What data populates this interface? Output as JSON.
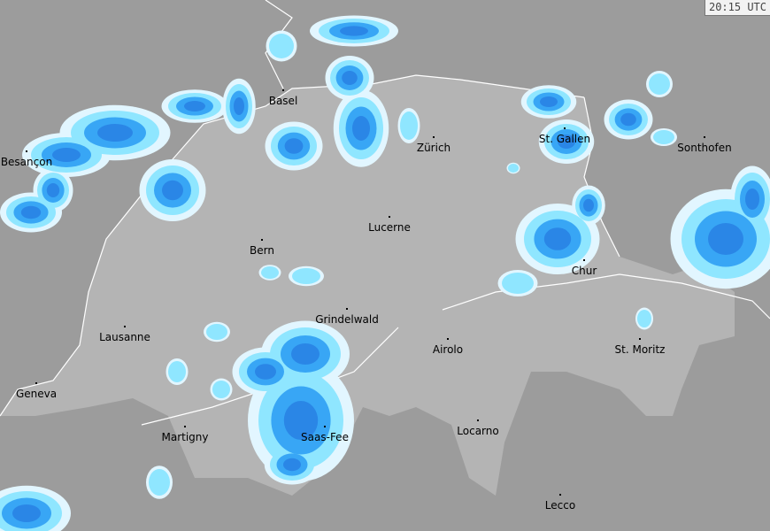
{
  "timestamp": "20:15 UTC",
  "colors": {
    "background": "#9c9c9c",
    "country": "#b4b4b4",
    "radar_light": "#e2f6ff",
    "radar_cyan": "#8fe6ff",
    "radar_mid": "#38a6f5",
    "radar_dark": "#2a86e6",
    "border": "#ffffff"
  },
  "cities": [
    {
      "name": "Basel"
    },
    {
      "name": "Zürich"
    },
    {
      "name": "St. Gallen"
    },
    {
      "name": "Sonthofen"
    },
    {
      "name": "Besançon"
    },
    {
      "name": "Lucerne"
    },
    {
      "name": "Bern"
    },
    {
      "name": "Chur"
    },
    {
      "name": "Grindelwald"
    },
    {
      "name": "Lausanne"
    },
    {
      "name": "Airolo"
    },
    {
      "name": "St. Moritz"
    },
    {
      "name": "Geneva"
    },
    {
      "name": "Martigny"
    },
    {
      "name": "Saas-Fee"
    },
    {
      "name": "Locarno"
    },
    {
      "name": "Lecco"
    }
  ]
}
